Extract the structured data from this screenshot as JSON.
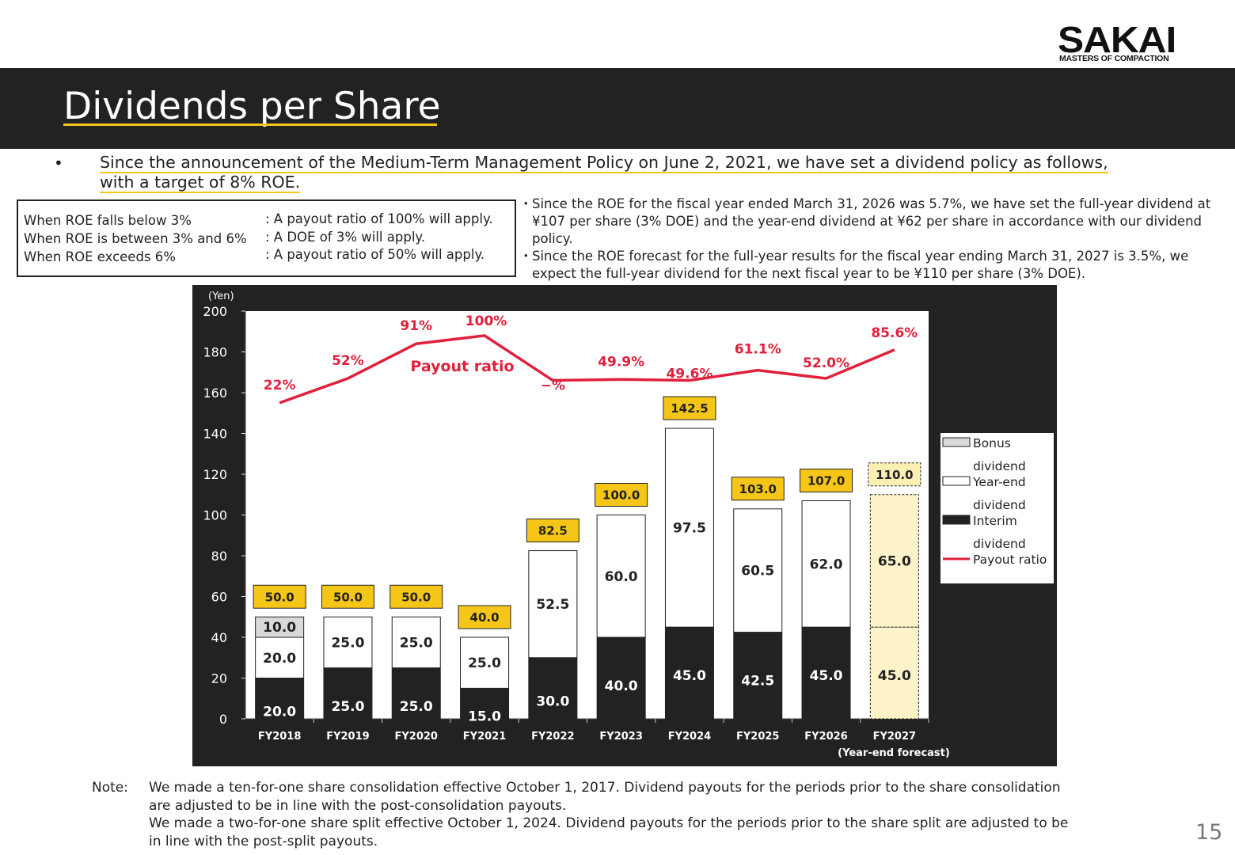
{
  "logo": {
    "main": "SAKAI",
    "sub": "MASTERS OF COMPACTION"
  },
  "title": "Dividends per Share",
  "bullet": {
    "dot": "•",
    "line1": "Since the announcement of the Medium-Term Management Policy on June 2, 2021, we have set a dividend policy as follows,",
    "line2": "with a target of 8% ROE."
  },
  "policy": [
    {
      "condition": "When ROE falls below 3%",
      "rule": ": A payout ratio of 100% will apply."
    },
    {
      "condition": "When ROE is between 3% and 6%",
      "rule": ": A DOE of 3% will apply."
    },
    {
      "condition": "When ROE exceeds 6%",
      "rule": ": A payout ratio of 50% will apply."
    }
  ],
  "notes": [
    {
      "dot": "・",
      "text": "Since the ROE for the fiscal year ended March 31, 2026 was 5.7%, we have set the full-year dividend at ¥107 per share (3% DOE) and the year-end dividend at ¥62 per share in accordance with our dividend policy."
    },
    {
      "dot": "・",
      "text": "Since the ROE forecast for the full-year results for the fiscal year ending March 31, 2027 is 3.5%, we expect the full-year dividend for the next fiscal year to be ¥110 per share (3% DOE)."
    }
  ],
  "chart_data": {
    "type": "bar",
    "stacked": true,
    "unit_label": "(Yen)",
    "ylim": [
      0,
      200
    ],
    "yticks": [
      0,
      20,
      40,
      60,
      80,
      100,
      120,
      140,
      160,
      180,
      200
    ],
    "categories": [
      "FY2018",
      "FY2019",
      "FY2020",
      "FY2021",
      "FY2022",
      "FY2023",
      "FY2024",
      "FY2025",
      "FY2026",
      "FY2027"
    ],
    "x_annotation": "(Year-end forecast)",
    "series": [
      {
        "name": "Interim dividend",
        "color": "#222222",
        "values": [
          20.0,
          25.0,
          25.0,
          15.0,
          30.0,
          40.0,
          45.0,
          42.5,
          45.0,
          45.0
        ],
        "labels": [
          "20.0",
          "25.0",
          "25.0",
          "15.0",
          "30.0",
          "40.0",
          "45.0",
          "42.5",
          "45.0",
          "45.0"
        ]
      },
      {
        "name": "Year-end dividend",
        "color": "#ffffff",
        "values": [
          20.0,
          25.0,
          25.0,
          25.0,
          52.5,
          60.0,
          97.5,
          60.5,
          62.0,
          65.0
        ],
        "labels": [
          "20.0",
          "25.0",
          "25.0",
          "25.0",
          "52.5",
          "60.0",
          "97.5",
          "60.5",
          "62.0",
          "65.0"
        ]
      },
      {
        "name": "Bonus dividend",
        "color": "#d9d9d9",
        "values": [
          10.0,
          0,
          0,
          0,
          0,
          0,
          0,
          0,
          0,
          0
        ],
        "labels": [
          "10.0",
          "",
          "",
          "",
          "",
          "",
          "",
          "",
          "",
          ""
        ]
      }
    ],
    "totals": [
      "50.0",
      "50.0",
      "50.0",
      "40.0",
      "82.5",
      "100.0",
      "142.5",
      "103.0",
      "107.0",
      "110.0"
    ],
    "total_values": [
      50.0,
      50.0,
      50.0,
      40.0,
      82.5,
      100.0,
      142.5,
      103.0,
      107.0,
      110.0
    ],
    "forecast_index": 9,
    "payout_ratio": {
      "name": "Payout ratio",
      "color": "#e0203c",
      "labels": [
        "22%",
        "52%",
        "91%",
        "100%",
        "−%",
        "49.9%",
        "49.6%",
        "61.1%",
        "52.0%",
        "85.6%"
      ],
      "line_y": [
        155,
        167,
        184,
        188,
        166,
        166.5,
        166,
        171,
        167,
        181
      ]
    },
    "legend": {
      "placement": "right",
      "entries": [
        {
          "line1": "Bonus",
          "line2": "dividend",
          "swatch": "#d9d9d9",
          "kind": "box"
        },
        {
          "line1": "Year-end",
          "line2": "dividend",
          "swatch": "#ffffff",
          "kind": "box"
        },
        {
          "line1": "Interim",
          "line2": "dividend",
          "swatch": "#222222",
          "kind": "box"
        },
        {
          "line1": "Payout ratio",
          "line2": "",
          "swatch": "#e0203c",
          "kind": "line"
        }
      ]
    },
    "colors": {
      "total_box": "#f5c518",
      "forecast_fill": "#fdf3c8",
      "panel": "#222222"
    }
  },
  "footnote": {
    "label": "Note:",
    "lines": [
      "We made a ten-for-one share consolidation effective October 1, 2017. Dividend payouts for the periods prior to the share consolidation",
      "are adjusted to be in line with the post-consolidation payouts.",
      "We made a two-for-one share split effective October 1, 2024. Dividend payouts for the periods prior to the share split are adjusted to be",
      "in line with the post-split payouts."
    ]
  },
  "page_number": "15"
}
